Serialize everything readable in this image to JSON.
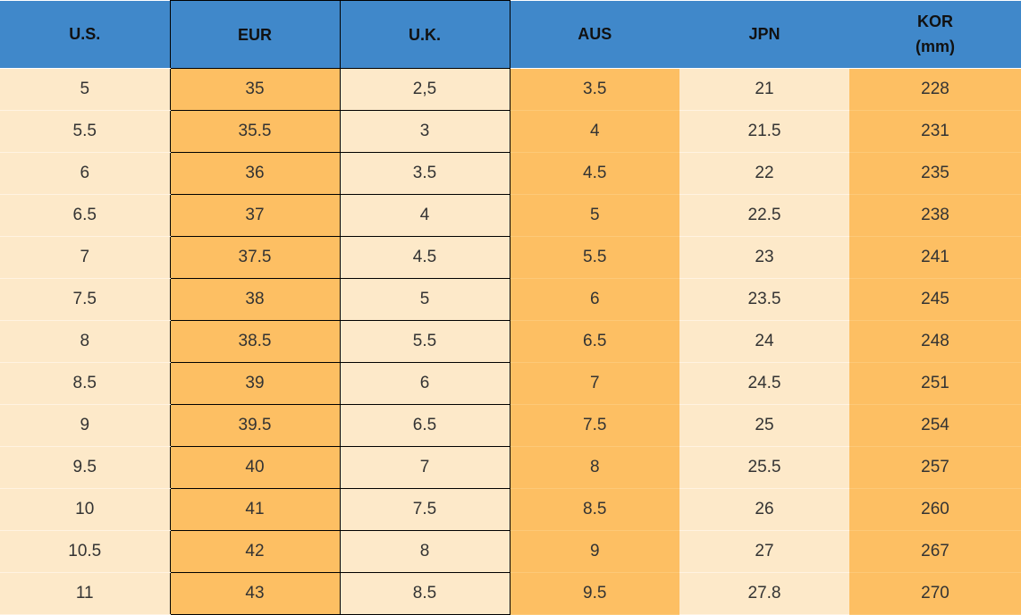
{
  "table": {
    "header": [
      "U.S.",
      "EUR",
      "U.K.",
      "AUS",
      "JPN",
      "KOR\n(mm)"
    ],
    "rows": [
      [
        "5",
        "35",
        "2,5",
        "3.5",
        "21",
        "228"
      ],
      [
        "5.5",
        "35.5",
        "3",
        "4",
        "21.5",
        "231"
      ],
      [
        "6",
        "36",
        "3.5",
        "4.5",
        "22",
        "235"
      ],
      [
        "6.5",
        "37",
        "4",
        "5",
        "22.5",
        "238"
      ],
      [
        "7",
        "37.5",
        "4.5",
        "5.5",
        "23",
        "241"
      ],
      [
        "7.5",
        "38",
        "5",
        "6",
        "23.5",
        "245"
      ],
      [
        "8",
        "38.5",
        "5.5",
        "6.5",
        "24",
        "248"
      ],
      [
        "8.5",
        "39",
        "6",
        "7",
        "24.5",
        "251"
      ],
      [
        "9",
        "39.5",
        "6.5",
        "7.5",
        "25",
        "254"
      ],
      [
        "9.5",
        "40",
        "7",
        "8",
        "25.5",
        "257"
      ],
      [
        "10",
        "41",
        "7.5",
        "8.5",
        "26",
        "260"
      ],
      [
        "10.5",
        "42",
        "8",
        "9",
        "27",
        "267"
      ],
      [
        "11",
        "43",
        "8.5",
        "9.5",
        "27.8",
        "270"
      ]
    ]
  }
}
